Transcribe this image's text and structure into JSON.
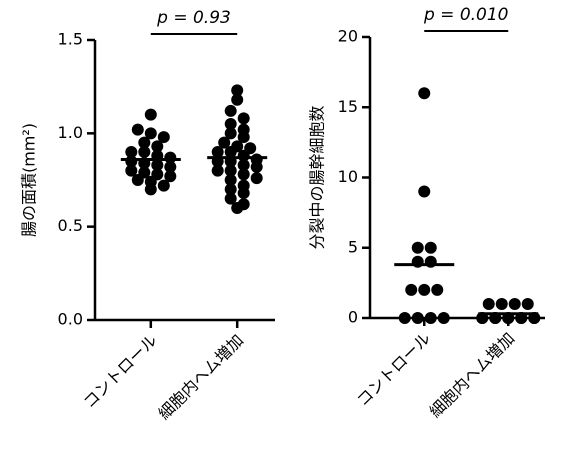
{
  "chart_data": [
    {
      "type": "strip",
      "ylabel": "腸の面積(mm²)",
      "annotation": "p = 0.93",
      "categories": [
        "コントロール",
        "細胞内ヘム増加"
      ],
      "values": [
        [
          1.1,
          1.02,
          1.0,
          0.98,
          0.95,
          0.93,
          0.9,
          0.9,
          0.88,
          0.87,
          0.85,
          0.84,
          0.83,
          0.82,
          0.8,
          0.79,
          0.78,
          0.77,
          0.75,
          0.74,
          0.72,
          0.7
        ],
        [
          1.23,
          1.18,
          1.12,
          1.08,
          1.05,
          1.02,
          1.0,
          0.98,
          0.95,
          0.93,
          0.92,
          0.9,
          0.9,
          0.88,
          0.86,
          0.85,
          0.85,
          0.83,
          0.82,
          0.8,
          0.8,
          0.78,
          0.76,
          0.75,
          0.72,
          0.7,
          0.68,
          0.65,
          0.62,
          0.6
        ]
      ],
      "means": [
        0.86,
        0.87
      ],
      "color": "#000000",
      "ylim": [
        0,
        1.5
      ],
      "yticks": [
        {
          "value": 0,
          "label": "0.0"
        },
        0.5,
        {
          "value": 1,
          "label": "1.0"
        },
        1.5
      ]
    },
    {
      "type": "strip",
      "ylabel": "分裂中の腸幹細胞数",
      "annotation": "p = 0.010",
      "categories": [
        "コントロール",
        "細胞内ヘム増加"
      ],
      "values": [
        [
          16,
          9,
          5,
          5,
          4,
          4,
          2,
          2,
          2,
          0,
          0,
          0,
          0
        ],
        [
          1,
          1,
          1,
          1,
          0,
          0,
          0,
          0,
          0,
          0,
          0,
          0,
          0,
          0
        ]
      ],
      "means": [
        3.8,
        0.3
      ],
      "color": "#000000",
      "ylim": [
        0,
        20
      ],
      "yticks": [
        0,
        5,
        10,
        15,
        20
      ]
    }
  ]
}
